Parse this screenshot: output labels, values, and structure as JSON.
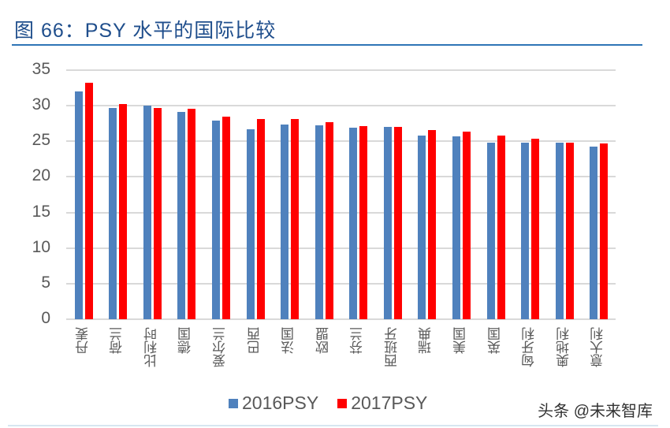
{
  "header": {
    "title": "图 66：PSY 水平的国际比较"
  },
  "watermark": "头条 @未来智库",
  "colors": {
    "series_2016": "#4f81bd",
    "series_2017": "#ff0000",
    "title": "#1f4e8c",
    "rule": "#2e75b6",
    "grid": "#d9d9d9"
  },
  "legend": {
    "items": [
      {
        "label": "2016PSY",
        "color": "#4f81bd"
      },
      {
        "label": "2017PSY",
        "color": "#ff0000"
      }
    ]
  },
  "yaxis": {
    "ticks": [
      "35",
      "30",
      "25",
      "20",
      "15",
      "10",
      "5",
      "0"
    ]
  },
  "chart_data": {
    "type": "bar",
    "title": "图 66：PSY 水平的国际比较",
    "xlabel": "",
    "ylabel": "",
    "ylim": [
      0,
      35
    ],
    "yticks": [
      0,
      5,
      10,
      15,
      20,
      25,
      30,
      35
    ],
    "grid": true,
    "legend_position": "bottom",
    "categories": [
      "丹麦",
      "荷兰",
      "比利时",
      "德国",
      "爱尔兰",
      "巴西",
      "法国",
      "欧盟",
      "芬兰",
      "西班牙",
      "瑞典",
      "美国",
      "英国",
      "匈牙利",
      "奥地利",
      "意大利"
    ],
    "series": [
      {
        "name": "2016PSY",
        "values": [
          32.0,
          29.7,
          30.0,
          29.1,
          27.9,
          26.7,
          27.4,
          27.3,
          26.9,
          27.0,
          25.8,
          25.7,
          24.8,
          24.8,
          24.8,
          24.3
        ]
      },
      {
        "name": "2017PSY",
        "values": [
          33.2,
          30.2,
          29.7,
          29.6,
          28.5,
          28.1,
          28.1,
          27.7,
          27.1,
          27.0,
          26.6,
          26.4,
          25.8,
          25.4,
          24.8,
          24.7
        ]
      }
    ]
  }
}
